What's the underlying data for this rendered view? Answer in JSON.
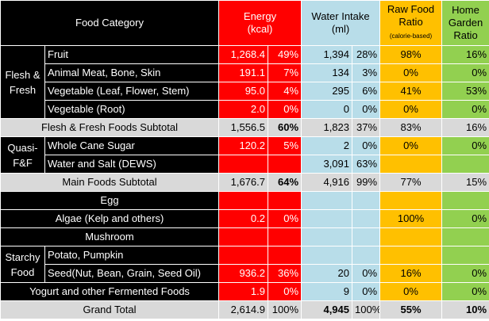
{
  "header": {
    "food_category": "Food Category",
    "energy": "Energy",
    "energy_unit": "(kcal)",
    "water": "Water Intake",
    "water_unit": "(ml)",
    "raw": "Raw Food Ratio",
    "raw_sub": "(calorie-based)",
    "garden": "Home Garden Ratio"
  },
  "groups": {
    "flesh_fresh": "Flesh & Fresh",
    "quasi": "Quasi-F&F",
    "starchy": "Starchy Food"
  },
  "rows": [
    {
      "label": "Fruit",
      "e": "1,268.4",
      "ep": "49%",
      "w": "1,394",
      "wp": "28%",
      "raw": "98%",
      "g": "16%"
    },
    {
      "label": "Animal Meat, Bone, Skin",
      "e": "191.1",
      "ep": "7%",
      "w": "134",
      "wp": "3%",
      "raw": "0%",
      "g": "0%"
    },
    {
      "label": "Vegetable (Leaf, Flower, Stem)",
      "e": "95.0",
      "ep": "4%",
      "w": "295",
      "wp": "6%",
      "raw": "41%",
      "g": "53%"
    },
    {
      "label": "Vegetable (Root)",
      "e": "2.0",
      "ep": "0%",
      "w": "0",
      "wp": "0%",
      "raw": "0%",
      "g": "0%"
    },
    {
      "label": "Flesh & Fresh Foods Subtotal",
      "e": "1,556.5",
      "ep": "60%",
      "w": "1,823",
      "wp": "37%",
      "raw": "83%",
      "g": "16%"
    },
    {
      "label": "Whole Cane Sugar",
      "e": "120.2",
      "ep": "5%",
      "w": "2",
      "wp": "0%",
      "raw": "0%",
      "g": "0%"
    },
    {
      "label": "Water and Salt (DEWS)",
      "e": "",
      "ep": "",
      "w": "3,091",
      "wp": "63%",
      "raw": "",
      "g": ""
    },
    {
      "label": "Main Foods Subtotal",
      "e": "1,676.7",
      "ep": "64%",
      "w": "4,916",
      "wp": "99%",
      "raw": "77%",
      "g": "15%"
    },
    {
      "label": "Egg",
      "e": "",
      "ep": "",
      "w": "",
      "wp": "",
      "raw": "",
      "g": ""
    },
    {
      "label": "Algae (Kelp and others)",
      "e": "0.2",
      "ep": "0%",
      "w": "",
      "wp": "",
      "raw": "100%",
      "g": "0%"
    },
    {
      "label": "Mushroom",
      "e": "",
      "ep": "",
      "w": "",
      "wp": "",
      "raw": "",
      "g": ""
    },
    {
      "label": "Potato, Pumpkin",
      "e": "",
      "ep": "",
      "w": "",
      "wp": "",
      "raw": "",
      "g": ""
    },
    {
      "label": "Seed(Nut, Bean, Grain, Seed Oil)",
      "e": "936.2",
      "ep": "36%",
      "w": "20",
      "wp": "0%",
      "raw": "16%",
      "g": "0%"
    },
    {
      "label": "Yogurt and other Fermented Foods",
      "e": "1.9",
      "ep": "0%",
      "w": "9",
      "wp": "0%",
      "raw": "0%",
      "g": "0%"
    },
    {
      "label": "Grand Total",
      "e": "2,614.9",
      "ep": "100%",
      "w": "4,945",
      "wp": "100%",
      "raw": "55%",
      "g": "10%"
    }
  ],
  "colors": {
    "energy": "#ff0000",
    "water": "#b8dde9",
    "raw": "#ffc000",
    "garden": "#92d050",
    "subtotal": "#d9d9d9",
    "category": "#000000"
  }
}
